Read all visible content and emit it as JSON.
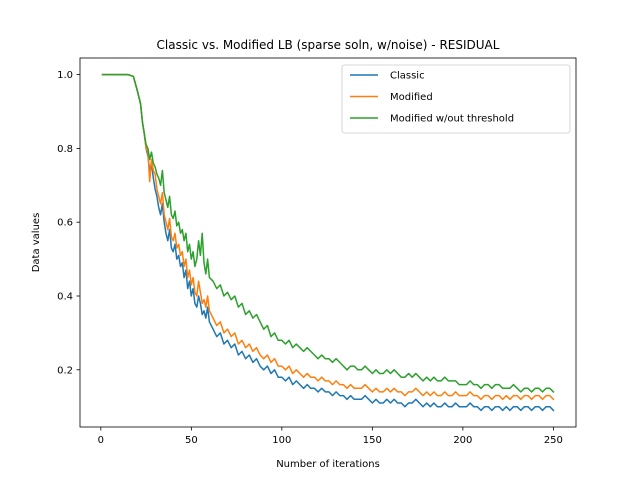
{
  "chart_data": {
    "type": "line",
    "title": "Classic vs. Modified LB (sparse soln, w/noise) - RESIDUAL",
    "xlabel": "Number of iterations",
    "ylabel": "Data values",
    "xlim": [
      -11.5,
      262.5
    ],
    "ylim": [
      0.045,
      1.045
    ],
    "xticks": [
      0,
      50,
      100,
      150,
      200,
      250
    ],
    "yticks": [
      0.2,
      0.4,
      0.6,
      0.8,
      1.0
    ],
    "xtick_labels": [
      "0",
      "50",
      "100",
      "150",
      "200",
      "250"
    ],
    "ytick_labels": [
      "0.2",
      "0.4",
      "0.6",
      "0.8",
      "1.0"
    ],
    "grid": false,
    "legend_position": "upper right",
    "series": [
      {
        "name": "Classic",
        "color": "#1f77b4",
        "x": [
          1,
          5,
          10,
          15,
          18,
          20,
          21,
          22,
          23,
          24,
          25,
          26,
          27,
          28,
          29,
          30,
          31,
          32,
          33,
          34,
          35,
          36,
          37,
          38,
          39,
          40,
          41,
          42,
          43,
          44,
          45,
          46,
          47,
          48,
          49,
          50,
          51,
          52,
          53,
          54,
          55,
          56,
          57,
          58,
          59,
          60,
          62,
          64,
          66,
          68,
          70,
          72,
          74,
          76,
          78,
          80,
          82,
          84,
          86,
          88,
          90,
          92,
          94,
          96,
          98,
          100,
          102,
          104,
          106,
          108,
          110,
          112,
          114,
          116,
          118,
          120,
          122,
          124,
          126,
          128,
          130,
          132,
          134,
          136,
          138,
          140,
          142,
          144,
          146,
          148,
          150,
          152,
          154,
          156,
          158,
          160,
          162,
          164,
          166,
          168,
          170,
          172,
          174,
          176,
          178,
          180,
          182,
          184,
          186,
          188,
          190,
          192,
          194,
          196,
          198,
          200,
          202,
          204,
          206,
          208,
          210,
          212,
          214,
          216,
          218,
          220,
          222,
          224,
          226,
          228,
          230,
          232,
          234,
          236,
          238,
          240,
          242,
          244,
          246,
          248,
          250
        ],
        "y": [
          1.0,
          1.0,
          1.0,
          1.0,
          0.995,
          0.96,
          0.94,
          0.92,
          0.87,
          0.84,
          0.8,
          0.78,
          0.74,
          0.76,
          0.72,
          0.69,
          0.67,
          0.64,
          0.62,
          0.65,
          0.6,
          0.57,
          0.55,
          0.58,
          0.53,
          0.52,
          0.54,
          0.5,
          0.51,
          0.48,
          0.49,
          0.45,
          0.47,
          0.42,
          0.44,
          0.4,
          0.42,
          0.38,
          0.37,
          0.4,
          0.38,
          0.35,
          0.36,
          0.34,
          0.37,
          0.33,
          0.31,
          0.29,
          0.3,
          0.27,
          0.28,
          0.26,
          0.27,
          0.24,
          0.25,
          0.23,
          0.24,
          0.22,
          0.23,
          0.21,
          0.2,
          0.21,
          0.19,
          0.2,
          0.18,
          0.18,
          0.17,
          0.18,
          0.16,
          0.17,
          0.16,
          0.15,
          0.16,
          0.15,
          0.15,
          0.14,
          0.15,
          0.14,
          0.14,
          0.13,
          0.14,
          0.13,
          0.13,
          0.12,
          0.13,
          0.12,
          0.12,
          0.12,
          0.13,
          0.12,
          0.11,
          0.12,
          0.11,
          0.11,
          0.12,
          0.11,
          0.12,
          0.11,
          0.11,
          0.1,
          0.11,
          0.11,
          0.12,
          0.11,
          0.1,
          0.11,
          0.1,
          0.11,
          0.1,
          0.1,
          0.11,
          0.1,
          0.1,
          0.11,
          0.1,
          0.1,
          0.1,
          0.11,
          0.1,
          0.1,
          0.09,
          0.1,
          0.1,
          0.09,
          0.1,
          0.1,
          0.09,
          0.1,
          0.09,
          0.1,
          0.1,
          0.09,
          0.1,
          0.1,
          0.09,
          0.1,
          0.1,
          0.09,
          0.1,
          0.1,
          0.09
        ]
      },
      {
        "name": "Modified",
        "color": "#ff7f0e",
        "x": [
          1,
          5,
          10,
          15,
          18,
          20,
          21,
          22,
          23,
          24,
          25,
          26,
          27,
          28,
          29,
          30,
          31,
          32,
          33,
          34,
          35,
          36,
          37,
          38,
          39,
          40,
          41,
          42,
          43,
          44,
          45,
          46,
          47,
          48,
          49,
          50,
          51,
          52,
          53,
          54,
          55,
          56,
          57,
          58,
          59,
          60,
          62,
          64,
          66,
          68,
          70,
          72,
          74,
          76,
          78,
          80,
          82,
          84,
          86,
          88,
          90,
          92,
          94,
          96,
          98,
          100,
          102,
          104,
          106,
          108,
          110,
          112,
          114,
          116,
          118,
          120,
          122,
          124,
          126,
          128,
          130,
          132,
          134,
          136,
          138,
          140,
          142,
          144,
          146,
          148,
          150,
          152,
          154,
          156,
          158,
          160,
          162,
          164,
          166,
          168,
          170,
          172,
          174,
          176,
          178,
          180,
          182,
          184,
          186,
          188,
          190,
          192,
          194,
          196,
          198,
          200,
          202,
          204,
          206,
          208,
          210,
          212,
          214,
          216,
          218,
          220,
          222,
          224,
          226,
          228,
          230,
          232,
          234,
          236,
          238,
          240,
          242,
          244,
          246,
          248,
          250
        ],
        "y": [
          1.0,
          1.0,
          1.0,
          1.0,
          0.995,
          0.96,
          0.94,
          0.92,
          0.87,
          0.84,
          0.8,
          0.79,
          0.71,
          0.77,
          0.74,
          0.73,
          0.69,
          0.67,
          0.65,
          0.68,
          0.62,
          0.6,
          0.58,
          0.61,
          0.56,
          0.55,
          0.57,
          0.53,
          0.54,
          0.51,
          0.52,
          0.48,
          0.5,
          0.45,
          0.47,
          0.43,
          0.45,
          0.41,
          0.4,
          0.44,
          0.41,
          0.38,
          0.39,
          0.37,
          0.4,
          0.36,
          0.34,
          0.32,
          0.33,
          0.3,
          0.31,
          0.29,
          0.3,
          0.27,
          0.28,
          0.26,
          0.27,
          0.25,
          0.26,
          0.24,
          0.23,
          0.24,
          0.22,
          0.23,
          0.21,
          0.21,
          0.2,
          0.21,
          0.19,
          0.2,
          0.19,
          0.18,
          0.19,
          0.18,
          0.18,
          0.17,
          0.18,
          0.17,
          0.17,
          0.16,
          0.17,
          0.16,
          0.16,
          0.15,
          0.16,
          0.15,
          0.15,
          0.15,
          0.16,
          0.15,
          0.14,
          0.15,
          0.14,
          0.14,
          0.15,
          0.14,
          0.15,
          0.14,
          0.14,
          0.13,
          0.14,
          0.14,
          0.15,
          0.14,
          0.13,
          0.14,
          0.13,
          0.14,
          0.13,
          0.13,
          0.14,
          0.13,
          0.13,
          0.14,
          0.13,
          0.13,
          0.13,
          0.14,
          0.13,
          0.13,
          0.12,
          0.13,
          0.13,
          0.12,
          0.13,
          0.13,
          0.12,
          0.13,
          0.12,
          0.13,
          0.13,
          0.12,
          0.13,
          0.13,
          0.12,
          0.13,
          0.13,
          0.12,
          0.13,
          0.13,
          0.12
        ]
      },
      {
        "name": "Modified w/out threshold",
        "color": "#2ca02c",
        "x": [
          1,
          5,
          10,
          15,
          18,
          20,
          21,
          22,
          23,
          24,
          25,
          26,
          27,
          28,
          29,
          30,
          31,
          32,
          33,
          34,
          35,
          36,
          37,
          38,
          39,
          40,
          41,
          42,
          43,
          44,
          45,
          46,
          47,
          48,
          49,
          50,
          51,
          52,
          53,
          54,
          55,
          56,
          57,
          58,
          59,
          60,
          62,
          64,
          66,
          68,
          70,
          72,
          74,
          76,
          78,
          80,
          82,
          84,
          86,
          88,
          90,
          92,
          94,
          96,
          98,
          100,
          102,
          104,
          106,
          108,
          110,
          112,
          114,
          116,
          118,
          120,
          122,
          124,
          126,
          128,
          130,
          132,
          134,
          136,
          138,
          140,
          142,
          144,
          146,
          148,
          150,
          152,
          154,
          156,
          158,
          160,
          162,
          164,
          166,
          168,
          170,
          172,
          174,
          176,
          178,
          180,
          182,
          184,
          186,
          188,
          190,
          192,
          194,
          196,
          198,
          200,
          202,
          204,
          206,
          208,
          210,
          212,
          214,
          216,
          218,
          220,
          222,
          224,
          226,
          228,
          230,
          232,
          234,
          236,
          238,
          240,
          242,
          244,
          246,
          248,
          250
        ],
        "y": [
          1.0,
          1.0,
          1.0,
          1.0,
          0.995,
          0.96,
          0.94,
          0.92,
          0.87,
          0.84,
          0.81,
          0.8,
          0.77,
          0.79,
          0.76,
          0.75,
          0.73,
          0.72,
          0.7,
          0.74,
          0.68,
          0.66,
          0.64,
          0.67,
          0.62,
          0.61,
          0.63,
          0.59,
          0.6,
          0.57,
          0.58,
          0.55,
          0.57,
          0.52,
          0.54,
          0.5,
          0.52,
          0.48,
          0.5,
          0.55,
          0.51,
          0.57,
          0.49,
          0.46,
          0.5,
          0.45,
          0.44,
          0.42,
          0.43,
          0.4,
          0.41,
          0.39,
          0.4,
          0.37,
          0.38,
          0.35,
          0.36,
          0.34,
          0.35,
          0.33,
          0.31,
          0.32,
          0.29,
          0.3,
          0.28,
          0.28,
          0.27,
          0.28,
          0.26,
          0.27,
          0.26,
          0.25,
          0.26,
          0.25,
          0.24,
          0.23,
          0.24,
          0.23,
          0.23,
          0.22,
          0.23,
          0.22,
          0.21,
          0.2,
          0.21,
          0.21,
          0.2,
          0.2,
          0.21,
          0.2,
          0.19,
          0.2,
          0.19,
          0.19,
          0.2,
          0.19,
          0.2,
          0.19,
          0.18,
          0.18,
          0.19,
          0.18,
          0.19,
          0.18,
          0.17,
          0.18,
          0.17,
          0.18,
          0.17,
          0.17,
          0.18,
          0.17,
          0.17,
          0.17,
          0.16,
          0.16,
          0.16,
          0.17,
          0.16,
          0.16,
          0.15,
          0.16,
          0.16,
          0.15,
          0.16,
          0.16,
          0.15,
          0.15,
          0.15,
          0.16,
          0.15,
          0.14,
          0.15,
          0.15,
          0.14,
          0.15,
          0.15,
          0.14,
          0.15,
          0.15,
          0.14
        ]
      }
    ]
  }
}
